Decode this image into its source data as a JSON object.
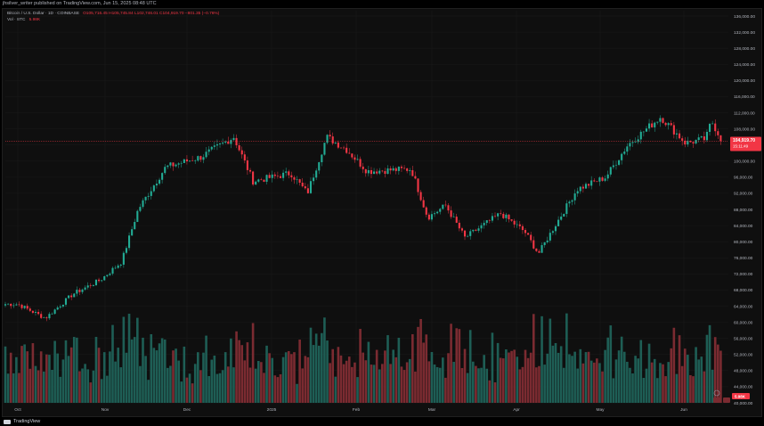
{
  "header": {
    "attribution": "jhsilver_writer published on TradingView.com, Jun 15, 2025 08:48 UTC"
  },
  "legend": {
    "symbol": "Bitcoin / U.S. Dollar · 1D · COINBASE",
    "open": "O105,716.45",
    "high": "H105,745.84",
    "low": "L102,746.01",
    "close": "C104,919.70",
    "change": "−801.35 (−0.76%)",
    "volume_label": "Vol · BTC",
    "volume_value": "5.98K"
  },
  "footer": {
    "brand": "TradingView"
  },
  "colors": {
    "up": "#22ab94",
    "down": "#f23645",
    "up_volume": "#1e5e55",
    "down_volume": "#7b2b31",
    "grid": "#1a1a1a",
    "axis_text": "#b2b5be"
  },
  "chart_data": {
    "type": "candlestick",
    "price_axis": {
      "min": 40000,
      "max": 136000,
      "ticks": [
        "136,000.00",
        "132,000.00",
        "128,000.00",
        "124,000.00",
        "120,000.00",
        "116,000.00",
        "112,000.00",
        "108,000.00",
        "104,000.00",
        "100,000.00",
        "96,000.00",
        "92,000.00",
        "88,000.00",
        "84,000.00",
        "80,000.00",
        "76,000.00",
        "72,000.00",
        "68,000.00",
        "64,000.00",
        "60,000.00",
        "56,000.00",
        "52,000.00",
        "48,000.00",
        "44,000.00",
        "40,000.00"
      ]
    },
    "time_axis": [
      "Oct",
      "Nov",
      "Dec",
      "2025",
      "Feb",
      "Mar",
      "Apr",
      "May",
      "Jun"
    ],
    "last_price": {
      "label": "104,919.70",
      "countdown": "15:11:49",
      "value": 104920
    },
    "volume_badge": "5.98K",
    "close_path": [
      {
        "month": "Oct",
        "days": 0,
        "close": 64500
      },
      {
        "month": "Oct",
        "days": 10,
        "close": 61000
      },
      {
        "month": "Oct",
        "days": 20,
        "close": 67000
      },
      {
        "month": "Oct",
        "days": 30,
        "close": 70500
      },
      {
        "month": "Nov",
        "days": 6,
        "close": 75000
      },
      {
        "month": "Nov",
        "days": 12,
        "close": 88000
      },
      {
        "month": "Nov",
        "days": 22,
        "close": 98500
      },
      {
        "month": "Dec",
        "days": 5,
        "close": 101000
      },
      {
        "month": "Dec",
        "days": 17,
        "close": 106000
      },
      {
        "month": "Dec",
        "days": 24,
        "close": 95000
      },
      {
        "month": "2025",
        "days": 7,
        "close": 97000
      },
      {
        "month": "2025",
        "days": 13,
        "close": 92000
      },
      {
        "month": "2025",
        "days": 20,
        "close": 106000
      },
      {
        "month": "2025",
        "days": 27,
        "close": 103000
      },
      {
        "month": "Feb",
        "days": 4,
        "close": 97500
      },
      {
        "month": "Feb",
        "days": 20,
        "close": 98000
      },
      {
        "month": "Feb",
        "days": 26,
        "close": 86000
      },
      {
        "month": "Mar",
        "days": 5,
        "close": 89000
      },
      {
        "month": "Mar",
        "days": 12,
        "close": 81000
      },
      {
        "month": "Mar",
        "days": 25,
        "close": 87000
      },
      {
        "month": "Apr",
        "days": 3,
        "close": 82500
      },
      {
        "month": "Apr",
        "days": 8,
        "close": 77000
      },
      {
        "month": "Apr",
        "days": 14,
        "close": 84000
      },
      {
        "month": "Apr",
        "days": 22,
        "close": 93000
      },
      {
        "month": "May",
        "days": 2,
        "close": 96000
      },
      {
        "month": "May",
        "days": 10,
        "close": 104000
      },
      {
        "month": "May",
        "days": 22,
        "close": 111000
      },
      {
        "month": "May",
        "days": 31,
        "close": 104500
      },
      {
        "month": "Jun",
        "days": 8,
        "close": 105500
      },
      {
        "month": "Jun",
        "days": 10,
        "close": 110000
      },
      {
        "month": "Jun",
        "days": 14,
        "close": 104920
      }
    ],
    "volume_scale": {
      "unit": "relative",
      "max": 1.0
    }
  }
}
